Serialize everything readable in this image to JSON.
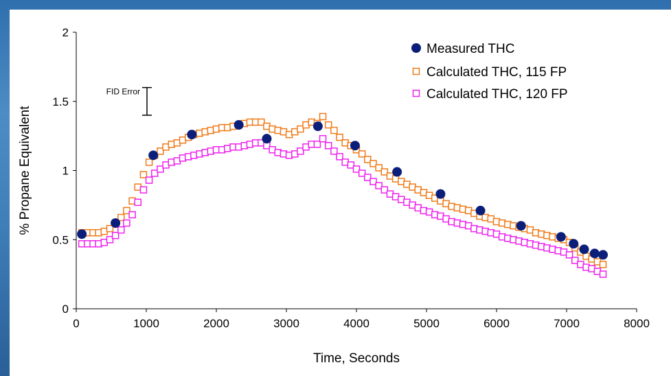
{
  "chart_data": {
    "type": "scatter",
    "xlabel": "Time, Seconds",
    "ylabel": "% Propane Equivalent",
    "xlim": [
      0,
      8000
    ],
    "ylim": [
      0,
      2
    ],
    "xticks": [
      "0",
      "1000",
      "2000",
      "3000",
      "4000",
      "5000",
      "6000",
      "7000",
      "8000"
    ],
    "yticks": [
      "0",
      "0.5",
      "1",
      "1.5",
      "2"
    ],
    "grid": false,
    "legend_position": "top-right",
    "annotation": {
      "label": "FID Error",
      "x": 1000,
      "y_low": 1.4,
      "y_high": 1.6
    },
    "series": [
      {
        "name": "Measured THC",
        "marker": "filled-circle",
        "color": "#0b1f7a",
        "x": [
          80,
          560,
          1100,
          1650,
          2320,
          2720,
          3450,
          3980,
          4580,
          5200,
          5770,
          6350,
          6920,
          7100,
          7250,
          7400,
          7520
        ],
        "y": [
          0.54,
          0.62,
          1.11,
          1.26,
          1.33,
          1.23,
          1.32,
          1.18,
          0.99,
          0.83,
          0.71,
          0.6,
          0.52,
          0.47,
          0.43,
          0.4,
          0.39
        ]
      },
      {
        "name": "Calculated THC, 115 FP",
        "marker": "open-square",
        "color": "#f07a18",
        "x": [
          80,
          160,
          240,
          320,
          400,
          480,
          560,
          640,
          720,
          800,
          880,
          960,
          1040,
          1120,
          1200,
          1280,
          1360,
          1440,
          1520,
          1600,
          1680,
          1760,
          1840,
          1920,
          2000,
          2080,
          2160,
          2240,
          2320,
          2400,
          2480,
          2560,
          2640,
          2720,
          2800,
          2880,
          2960,
          3040,
          3120,
          3200,
          3280,
          3360,
          3440,
          3520,
          3600,
          3680,
          3760,
          3840,
          3920,
          4000,
          4080,
          4160,
          4240,
          4320,
          4400,
          4480,
          4560,
          4640,
          4720,
          4800,
          4880,
          4960,
          5040,
          5120,
          5200,
          5280,
          5360,
          5440,
          5520,
          5600,
          5680,
          5760,
          5840,
          5920,
          6000,
          6080,
          6160,
          6240,
          6320,
          6400,
          6480,
          6560,
          6640,
          6720,
          6800,
          6880,
          6960,
          7040,
          7120,
          7200,
          7280,
          7360,
          7440,
          7520
        ],
        "y": [
          0.55,
          0.55,
          0.55,
          0.55,
          0.56,
          0.58,
          0.62,
          0.66,
          0.71,
          0.78,
          0.88,
          0.97,
          1.06,
          1.11,
          1.14,
          1.17,
          1.19,
          1.2,
          1.22,
          1.24,
          1.26,
          1.27,
          1.28,
          1.29,
          1.3,
          1.31,
          1.31,
          1.32,
          1.33,
          1.34,
          1.35,
          1.35,
          1.35,
          1.32,
          1.3,
          1.29,
          1.28,
          1.26,
          1.28,
          1.3,
          1.33,
          1.35,
          1.34,
          1.39,
          1.33,
          1.29,
          1.24,
          1.2,
          1.18,
          1.15,
          1.12,
          1.08,
          1.05,
          1.02,
          0.99,
          0.96,
          0.94,
          0.92,
          0.9,
          0.88,
          0.86,
          0.84,
          0.82,
          0.8,
          0.78,
          0.76,
          0.74,
          0.73,
          0.72,
          0.71,
          0.69,
          0.67,
          0.66,
          0.65,
          0.63,
          0.62,
          0.61,
          0.6,
          0.59,
          0.58,
          0.57,
          0.55,
          0.54,
          0.53,
          0.52,
          0.51,
          0.5,
          0.48,
          0.44,
          0.41,
          0.38,
          0.36,
          0.34,
          0.32
        ]
      },
      {
        "name": "Calculated THC, 120 FP",
        "marker": "open-square",
        "color": "#ee22ee",
        "x": [
          80,
          160,
          240,
          320,
          400,
          480,
          560,
          640,
          720,
          800,
          880,
          960,
          1040,
          1120,
          1200,
          1280,
          1360,
          1440,
          1520,
          1600,
          1680,
          1760,
          1840,
          1920,
          2000,
          2080,
          2160,
          2240,
          2320,
          2400,
          2480,
          2560,
          2640,
          2720,
          2800,
          2880,
          2960,
          3040,
          3120,
          3200,
          3280,
          3360,
          3440,
          3520,
          3600,
          3680,
          3760,
          3840,
          3920,
          4000,
          4080,
          4160,
          4240,
          4320,
          4400,
          4480,
          4560,
          4640,
          4720,
          4800,
          4880,
          4960,
          5040,
          5120,
          5200,
          5280,
          5360,
          5440,
          5520,
          5600,
          5680,
          5760,
          5840,
          5920,
          6000,
          6080,
          6160,
          6240,
          6320,
          6400,
          6480,
          6560,
          6640,
          6720,
          6800,
          6880,
          6960,
          7040,
          7120,
          7200,
          7280,
          7360,
          7440,
          7520
        ],
        "y": [
          0.47,
          0.47,
          0.47,
          0.47,
          0.48,
          0.5,
          0.53,
          0.57,
          0.62,
          0.68,
          0.77,
          0.86,
          0.93,
          0.98,
          1.01,
          1.04,
          1.06,
          1.07,
          1.09,
          1.1,
          1.11,
          1.12,
          1.13,
          1.14,
          1.15,
          1.15,
          1.16,
          1.17,
          1.17,
          1.18,
          1.19,
          1.2,
          1.2,
          1.18,
          1.15,
          1.13,
          1.12,
          1.11,
          1.12,
          1.14,
          1.17,
          1.19,
          1.19,
          1.23,
          1.18,
          1.14,
          1.1,
          1.06,
          1.04,
          1.01,
          0.98,
          0.95,
          0.92,
          0.89,
          0.86,
          0.83,
          0.81,
          0.79,
          0.77,
          0.75,
          0.73,
          0.71,
          0.7,
          0.68,
          0.67,
          0.65,
          0.63,
          0.62,
          0.61,
          0.6,
          0.58,
          0.57,
          0.56,
          0.55,
          0.54,
          0.52,
          0.51,
          0.5,
          0.49,
          0.48,
          0.47,
          0.46,
          0.45,
          0.44,
          0.43,
          0.42,
          0.41,
          0.39,
          0.35,
          0.32,
          0.3,
          0.29,
          0.27,
          0.25
        ]
      }
    ]
  }
}
